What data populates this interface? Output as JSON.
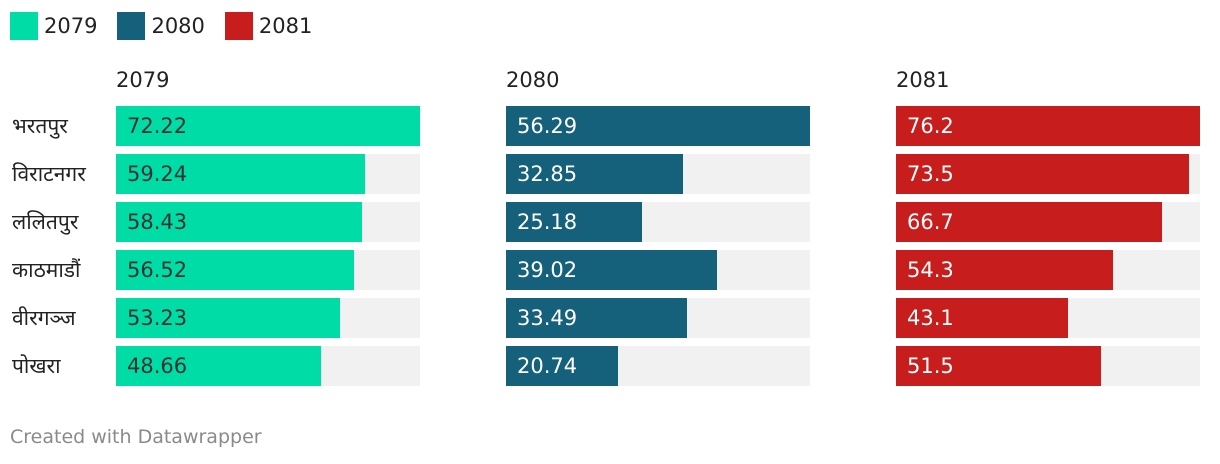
{
  "chart_data": {
    "type": "bar",
    "orientation": "horizontal",
    "layout": "small-multiples",
    "categories": [
      "भरतपुर",
      "विराटनगर",
      "ललितपुर",
      "काठमाडौं",
      "वीरगञ्ज",
      "पोखरा"
    ],
    "series": [
      {
        "name": "2079",
        "color": "#00dca5",
        "values": [
          72.22,
          59.24,
          58.43,
          56.52,
          53.23,
          48.66
        ],
        "label_color": "#333333"
      },
      {
        "name": "2080",
        "color": "#15607a",
        "values": [
          56.29,
          32.85,
          25.18,
          39.02,
          33.49,
          20.74
        ],
        "label_color": "#ffffff"
      },
      {
        "name": "2081",
        "color": "#c71e1d",
        "values": [
          76.2,
          73.5,
          66.7,
          54.3,
          43.1,
          51.5
        ],
        "label_color": "#ffffff"
      }
    ],
    "legend": [
      "2079",
      "2080",
      "2081"
    ],
    "legend_position": "top-left"
  },
  "footer": {
    "credit": "Created with Datawrapper"
  }
}
